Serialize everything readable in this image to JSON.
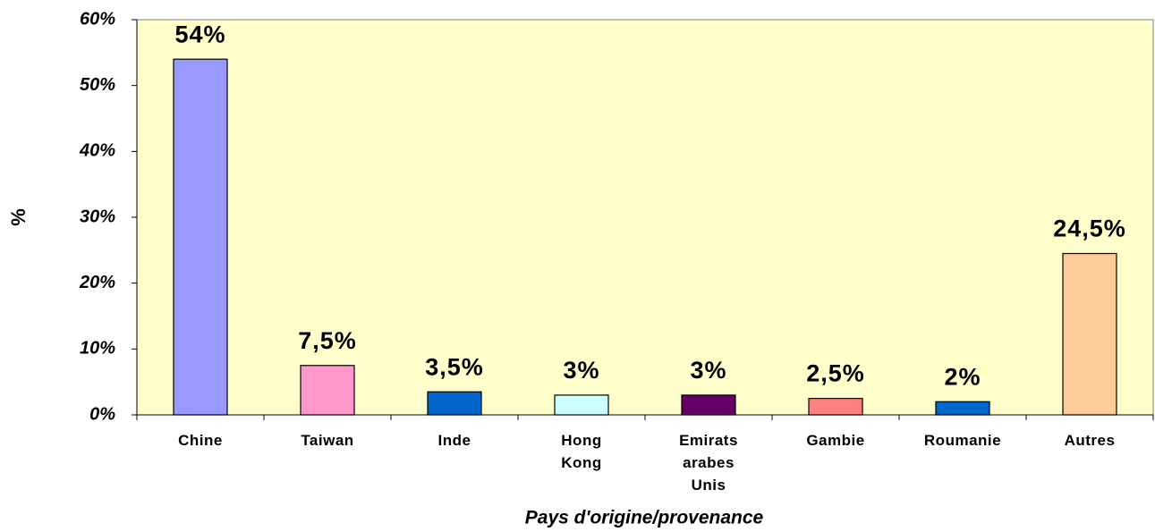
{
  "chart_data": {
    "type": "bar",
    "y_label": "%",
    "x_label": "Pays d'origine/provenance",
    "categories": [
      "Chine",
      "Taiwan",
      "Inde",
      "Hong Kong",
      "Emirats arabes Unis",
      "Gambie",
      "Roumanie",
      "Autres"
    ],
    "values": [
      54,
      7.5,
      3.5,
      3,
      3,
      2.5,
      2,
      24.5
    ],
    "value_labels": [
      "54%",
      "7,5%",
      "3,5%",
      "3%",
      "3%",
      "2,5%",
      "2%",
      "24,5%"
    ],
    "colors": [
      "#9999ff",
      "#ff99cc",
      "#0066cc",
      "#ccffff",
      "#660066",
      "#ff8080",
      "#0066cc",
      "#ffcc99"
    ],
    "ylim": [
      0,
      60
    ],
    "yticks": [
      {
        "value": 0,
        "label": "0%"
      },
      {
        "value": 10,
        "label": "10%"
      },
      {
        "value": 20,
        "label": "20%"
      },
      {
        "value": 30,
        "label": "30%"
      },
      {
        "value": 40,
        "label": "40%"
      },
      {
        "value": 50,
        "label": "50%"
      },
      {
        "value": 60,
        "label": "60%"
      }
    ],
    "grid": false
  }
}
